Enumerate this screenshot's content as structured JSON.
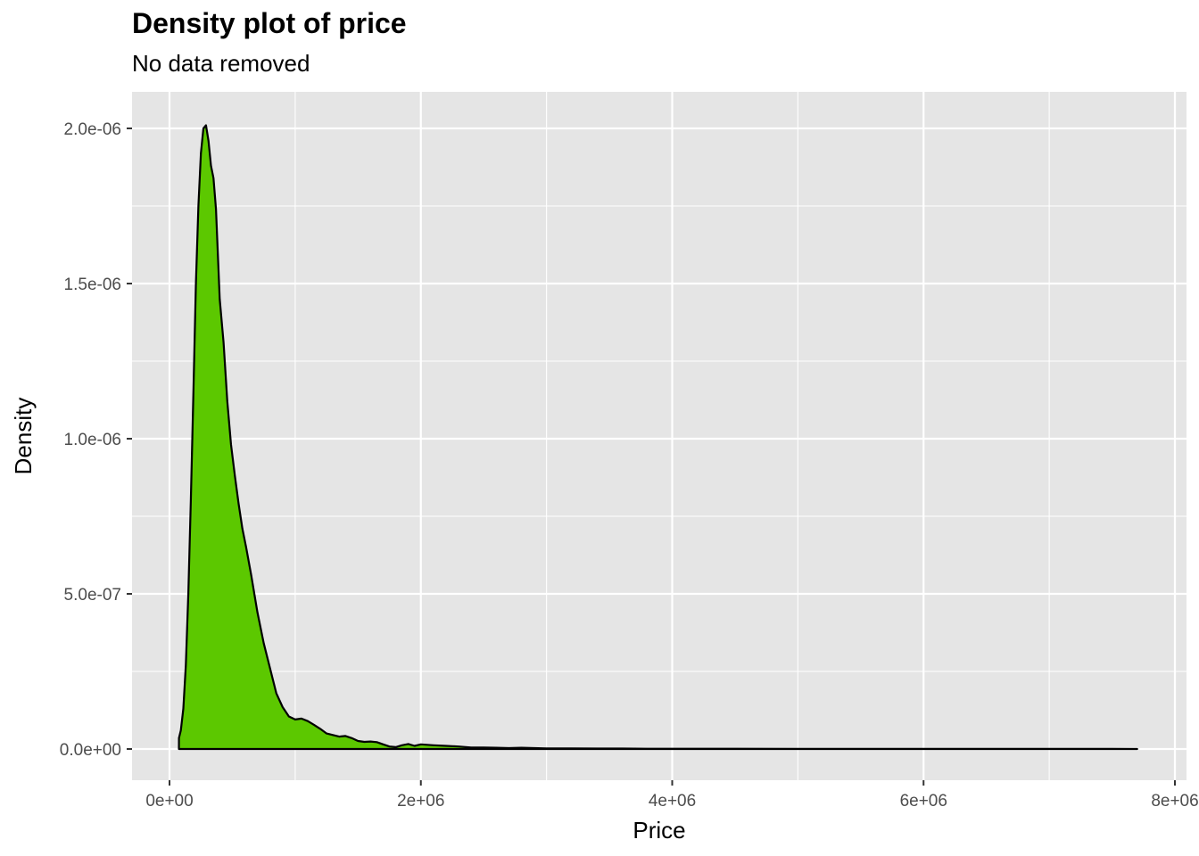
{
  "chart_data": {
    "type": "area",
    "title": "Density plot of price",
    "subtitle": "No data removed",
    "xlabel": "Price",
    "ylabel": "Density",
    "xlim": [
      -300000,
      8000000
    ],
    "ylim": [
      -1e-07,
      2.1e-06
    ],
    "x_ticks": [
      0,
      2000000,
      4000000,
      6000000,
      8000000
    ],
    "x_tick_labels": [
      "0e+00",
      "2e+06",
      "4e+06",
      "6e+06",
      "8e+06"
    ],
    "y_ticks": [
      0,
      5e-07,
      1e-06,
      1.5e-06,
      2e-06
    ],
    "y_tick_labels": [
      "0.0e+00",
      "5.0e-07",
      "1.0e-06",
      "1.5e-06",
      "2.0e-06"
    ],
    "grid": true,
    "colors": {
      "fill": "#5CC800",
      "line": "#000000",
      "panel": "#E5E5E5",
      "grid": "#FFFFFF"
    },
    "series": [
      {
        "x": [
          75000,
          90000,
          110000,
          130000,
          150000,
          170000,
          190000,
          210000,
          230000,
          250000,
          270000,
          290000,
          310000,
          330000,
          350000,
          370000,
          400000,
          430000,
          460000,
          490000,
          520000,
          550000,
          580000,
          610000,
          650000,
          700000,
          750000,
          800000,
          850000,
          900000,
          950000,
          1000000,
          1050000,
          1100000,
          1150000,
          1200000,
          1250000,
          1300000,
          1350000,
          1400000,
          1450000,
          1500000,
          1550000,
          1600000,
          1650000,
          1700000,
          1750000,
          1800000,
          1850000,
          1900000,
          1950000,
          2000000,
          2100000,
          2200000,
          2300000,
          2400000,
          2500000,
          2600000,
          2700000,
          2800000,
          2900000,
          3000000,
          3200000,
          3400000,
          3600000,
          3800000,
          4000000,
          4500000,
          5000000,
          5500000,
          6000000,
          6500000,
          7000000,
          7500000,
          7700000
        ],
        "y": [
          3.5e-08,
          6e-08,
          1.3e-07,
          2.7e-07,
          5e-07,
          8e-07,
          1.15e-06,
          1.5e-06,
          1.75e-06,
          1.92e-06,
          2e-06,
          2.01e-06,
          1.96e-06,
          1.88e-06,
          1.84e-06,
          1.74e-06,
          1.45e-06,
          1.31e-06,
          1.12e-06,
          9.8e-07,
          8.8e-07,
          7.9e-07,
          7.1e-07,
          6.5e-07,
          5.6e-07,
          4.4e-07,
          3.4e-07,
          2.6e-07,
          1.8e-07,
          1.35e-07,
          1.05e-07,
          9.5e-08,
          9.8e-08,
          9e-08,
          7.8e-08,
          6.5e-08,
          5e-08,
          4.5e-08,
          4e-08,
          4.2e-08,
          3.5e-08,
          2.6e-08,
          2.3e-08,
          2.4e-08,
          2.2e-08,
          1.5e-08,
          8e-09,
          6e-09,
          1.2e-08,
          1.6e-08,
          1e-08,
          1.5e-08,
          1.2e-08,
          1e-08,
          8e-09,
          5e-09,
          5e-09,
          4e-09,
          3e-09,
          4e-09,
          3e-09,
          2e-09,
          2e-09,
          1.5e-09,
          1.5e-09,
          1e-09,
          1e-09,
          1e-09,
          5e-10,
          5e-10,
          5e-10,
          5e-10,
          5e-10,
          5e-10,
          0
        ]
      }
    ]
  }
}
